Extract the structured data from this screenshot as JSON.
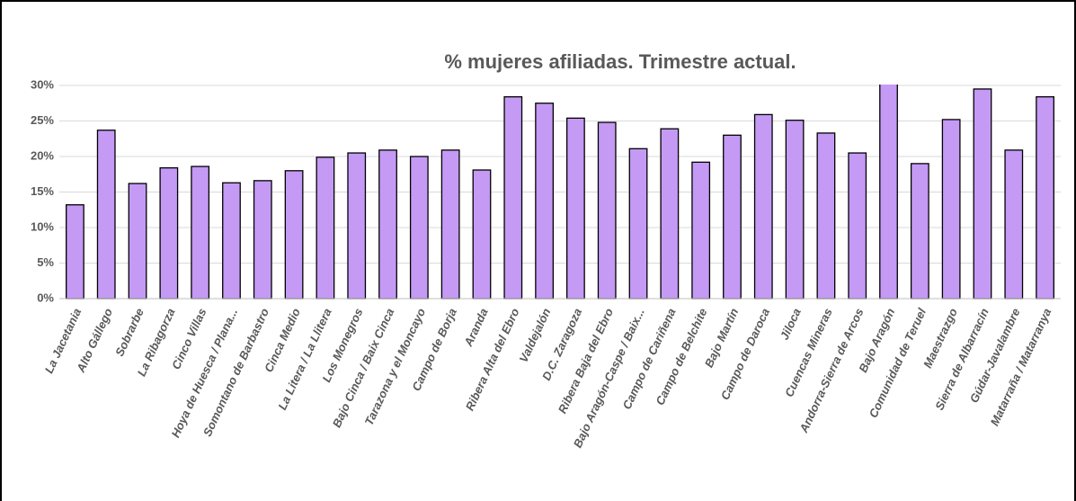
{
  "chart_data": {
    "type": "bar",
    "title": "% mujeres afiliadas. Trimestre actual.",
    "categories": [
      "La Jacetania",
      "Alto Gállego",
      "Sobrarbe",
      "La Ribagorza",
      "Cinco Villas",
      "Hoya de Huesca / Plana...",
      "Somontano de Barbastro",
      "Cinca Medio",
      "La Litera / La Llitera",
      "Los Monegros",
      "Bajo Cinca / Baix Cinca",
      "Tarazona y el Moncayo",
      "Campo de Borja",
      "Aranda",
      "Ribera Alta del Ebro",
      "Valdejalón",
      "D.C. Zaragoza",
      "Ribera Baja del Ebro",
      "Bajo Aragón-Caspe / Baix...",
      "Campo de Cariñena",
      "Campo de Belchite",
      "Bajo Martín",
      "Campo de Daroca",
      "Jiloca",
      "Cuencas Mineras",
      "Andorra-Sierra de Arcos",
      "Bajo Aragón",
      "Comunidad de Teruel",
      "Maestrazgo",
      "Sierra de Albarracín",
      "Gúdar-Javalambre",
      "Matarraña / Matarranya"
    ],
    "values": [
      13.2,
      23.7,
      16.2,
      18.4,
      18.6,
      16.3,
      16.6,
      18.0,
      19.9,
      20.5,
      20.9,
      20.0,
      20.9,
      18.1,
      28.4,
      27.5,
      25.4,
      24.8,
      21.1,
      23.9,
      19.2,
      23.0,
      25.9,
      25.1,
      23.3,
      20.5,
      30.3,
      19.0,
      25.2,
      29.5,
      20.9,
      28.4
    ],
    "color": "#c49af5",
    "ylim": [
      0,
      30
    ],
    "yticks": [
      {
        "value": 0,
        "label": "0%"
      },
      {
        "value": 5,
        "label": "5%"
      },
      {
        "value": 10,
        "label": "10%"
      },
      {
        "value": 15,
        "label": "15%"
      },
      {
        "value": 20,
        "label": "20%"
      },
      {
        "value": 25,
        "label": "25%"
      },
      {
        "value": 30,
        "label": "30%"
      }
    ],
    "grid": true
  }
}
